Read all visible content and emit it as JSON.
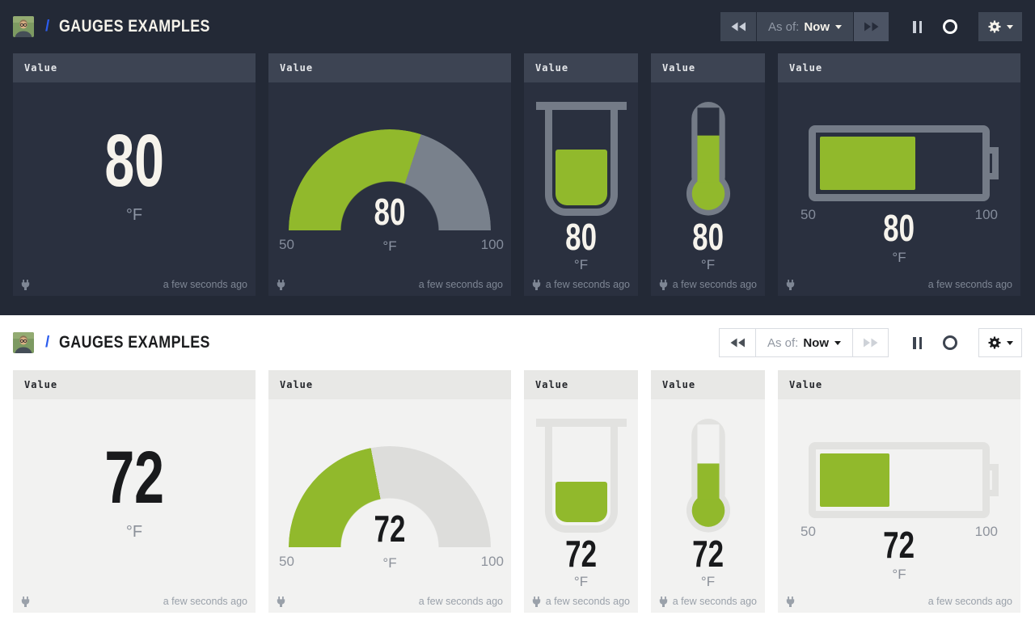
{
  "colors": {
    "green": "#91b92c",
    "accent_blue": "#2b5cee",
    "dark_background": "#232936",
    "dark_panel": "#2a303f",
    "dark_panel_header": "#3d4453",
    "light_panel": "#f2f2f1",
    "light_panel_header": "#e8e8e6"
  },
  "icons": [
    "avatar",
    "rewind-icon",
    "fast-forward-icon",
    "pause-icon",
    "refresh-ring-icon",
    "gear-icon",
    "caret-down-icon",
    "plug-icon"
  ],
  "dashboards": [
    {
      "theme": "dark",
      "header": {
        "separator": "/",
        "title": "GAUGES EXAMPLES",
        "as_of_label": "As of:",
        "as_of_value": "Now"
      },
      "widgets": [
        {
          "type": "number",
          "title": "Value",
          "value": 80,
          "unit": "°F",
          "updated": "a few seconds ago"
        },
        {
          "type": "radial",
          "title": "Value",
          "value": 80,
          "min": 50,
          "max": 100,
          "unit": "°F",
          "updated": "a few seconds ago"
        },
        {
          "type": "beaker",
          "title": "Value",
          "value": 80,
          "min": 50,
          "max": 100,
          "unit": "°F",
          "updated": "a few seconds ago"
        },
        {
          "type": "thermometer",
          "title": "Value",
          "value": 80,
          "min": 50,
          "max": 100,
          "unit": "°F",
          "updated": "a few seconds ago"
        },
        {
          "type": "battery",
          "title": "Value",
          "value": 80,
          "min": 50,
          "max": 100,
          "unit": "°F",
          "updated": "a few seconds ago"
        }
      ]
    },
    {
      "theme": "light",
      "header": {
        "separator": "/",
        "title": "GAUGES EXAMPLES",
        "as_of_label": "As of:",
        "as_of_value": "Now"
      },
      "widgets": [
        {
          "type": "number",
          "title": "Value",
          "value": 72,
          "unit": "°F",
          "updated": "a few seconds ago"
        },
        {
          "type": "radial",
          "title": "Value",
          "value": 72,
          "min": 50,
          "max": 100,
          "unit": "°F",
          "updated": "a few seconds ago"
        },
        {
          "type": "beaker",
          "title": "Value",
          "value": 72,
          "min": 50,
          "max": 100,
          "unit": "°F",
          "updated": "a few seconds ago"
        },
        {
          "type": "thermometer",
          "title": "Value",
          "value": 72,
          "min": 50,
          "max": 100,
          "unit": "°F",
          "updated": "a few seconds ago"
        },
        {
          "type": "battery",
          "title": "Value",
          "value": 72,
          "min": 50,
          "max": 100,
          "unit": "°F",
          "updated": "a few seconds ago"
        }
      ]
    }
  ]
}
